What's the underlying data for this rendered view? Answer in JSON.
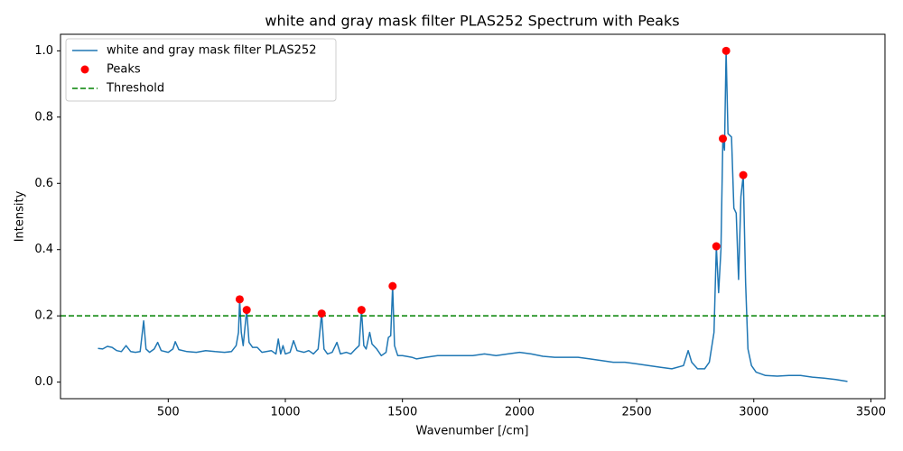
{
  "chart_data": {
    "type": "line",
    "title": "white and gray mask filter PLAS252 Spectrum with Peaks",
    "xlabel": "Wavenumber [/cm]",
    "ylabel": "Intensity",
    "xlim": [
      40,
      3560
    ],
    "ylim": [
      -0.05,
      1.05
    ],
    "xticks": [
      500,
      1000,
      1500,
      2000,
      2500,
      3000,
      3500
    ],
    "yticks": [
      {
        "value": 0,
        "label": "0.0"
      },
      0.2,
      0.4,
      0.6,
      0.8,
      {
        "value": 1,
        "label": "1.0"
      }
    ],
    "legend": "upper left",
    "series": [
      {
        "name": "white and gray mask filter PLAS252",
        "color": "#1f77b4",
        "x": [
          200,
          220,
          240,
          260,
          280,
          300,
          320,
          340,
          360,
          380,
          395,
          405,
          420,
          440,
          455,
          470,
          500,
          520,
          530,
          545,
          580,
          620,
          660,
          700,
          740,
          770,
          790,
          800,
          805,
          812,
          820,
          835,
          845,
          860,
          880,
          900,
          940,
          960,
          970,
          980,
          990,
          1000,
          1020,
          1035,
          1050,
          1080,
          1100,
          1120,
          1140,
          1155,
          1165,
          1180,
          1200,
          1220,
          1235,
          1260,
          1280,
          1300,
          1315,
          1325,
          1335,
          1345,
          1360,
          1370,
          1390,
          1410,
          1430,
          1440,
          1450,
          1458,
          1466,
          1480,
          1500,
          1540,
          1560,
          1600,
          1650,
          1700,
          1750,
          1800,
          1850,
          1900,
          1950,
          2000,
          2050,
          2100,
          2150,
          2200,
          2250,
          2300,
          2350,
          2400,
          2450,
          2500,
          2550,
          2600,
          2650,
          2700,
          2720,
          2735,
          2760,
          2790,
          2810,
          2830,
          2840,
          2850,
          2860,
          2868,
          2875,
          2882,
          2890,
          2905,
          2915,
          2925,
          2935,
          2945,
          2955,
          2965,
          2975,
          2990,
          3010,
          3050,
          3100,
          3150,
          3200,
          3250,
          3300,
          3350,
          3400
        ],
        "values": [
          0.102,
          0.1,
          0.108,
          0.105,
          0.095,
          0.092,
          0.11,
          0.092,
          0.09,
          0.092,
          0.185,
          0.1,
          0.09,
          0.1,
          0.12,
          0.095,
          0.09,
          0.1,
          0.122,
          0.098,
          0.092,
          0.09,
          0.095,
          0.092,
          0.09,
          0.092,
          0.11,
          0.15,
          0.25,
          0.15,
          0.11,
          0.218,
          0.12,
          0.105,
          0.105,
          0.09,
          0.095,
          0.085,
          0.13,
          0.085,
          0.11,
          0.085,
          0.09,
          0.125,
          0.095,
          0.09,
          0.095,
          0.085,
          0.1,
          0.207,
          0.1,
          0.085,
          0.09,
          0.12,
          0.085,
          0.09,
          0.085,
          0.1,
          0.11,
          0.218,
          0.11,
          0.1,
          0.15,
          0.115,
          0.1,
          0.08,
          0.09,
          0.135,
          0.14,
          0.29,
          0.11,
          0.08,
          0.08,
          0.075,
          0.07,
          0.075,
          0.08,
          0.08,
          0.08,
          0.08,
          0.085,
          0.08,
          0.085,
          0.09,
          0.085,
          0.078,
          0.075,
          0.075,
          0.075,
          0.07,
          0.065,
          0.06,
          0.06,
          0.055,
          0.05,
          0.045,
          0.04,
          0.05,
          0.095,
          0.06,
          0.04,
          0.04,
          0.06,
          0.15,
          0.41,
          0.27,
          0.4,
          0.735,
          0.7,
          1.0,
          0.75,
          0.74,
          0.525,
          0.51,
          0.31,
          0.56,
          0.625,
          0.3,
          0.1,
          0.05,
          0.03,
          0.02,
          0.018,
          0.02,
          0.02,
          0.015,
          0.012,
          0.008,
          0.002
        ]
      }
    ],
    "peaks": {
      "name": "Peaks",
      "color": "#ff0000",
      "x": [
        805,
        835,
        1155,
        1325,
        1458,
        2840,
        2868,
        2882,
        2955
      ],
      "values": [
        0.25,
        0.218,
        0.207,
        0.218,
        0.29,
        0.41,
        0.735,
        1.0,
        0.625
      ]
    },
    "threshold": {
      "name": "Threshold",
      "color": "#008000",
      "value": 0.2
    }
  }
}
